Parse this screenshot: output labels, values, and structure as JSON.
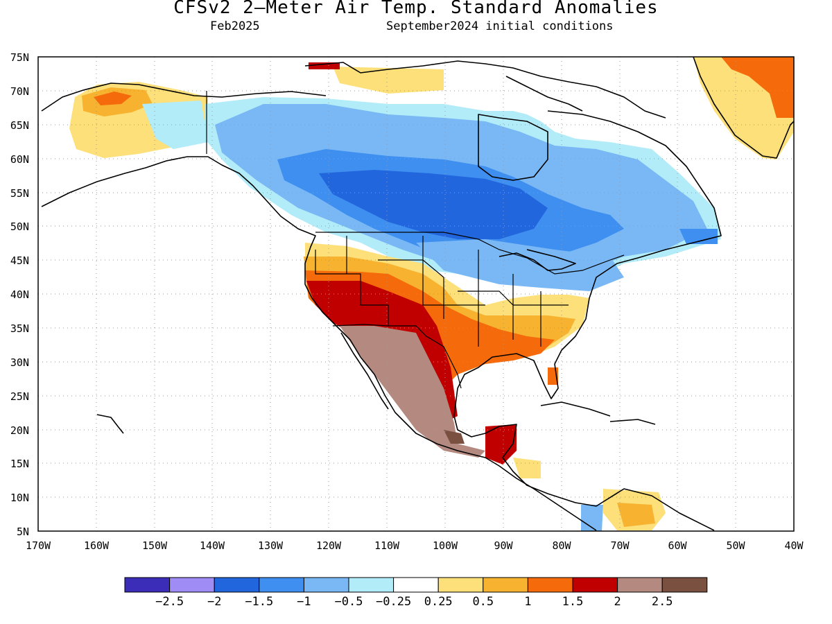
{
  "header": {
    "title": "CFSv2 2–Meter Air Temp. Standard Anomalies",
    "valid_month": "Feb2025",
    "init_conditions": "September2024 initial conditions"
  },
  "axes": {
    "lat_labels": [
      "75N",
      "70N",
      "65N",
      "60N",
      "55N",
      "50N",
      "45N",
      "40N",
      "35N",
      "30N",
      "25N",
      "20N",
      "15N",
      "10N",
      "5N"
    ],
    "lon_labels": [
      "170W",
      "160W",
      "150W",
      "140W",
      "130W",
      "120W",
      "110W",
      "100W",
      "90W",
      "80W",
      "70W",
      "60W",
      "50W",
      "40W"
    ]
  },
  "colorbar": {
    "colors": [
      "#3b2db8",
      "#a08cf5",
      "#2266dd",
      "#3f8ff0",
      "#79b8f5",
      "#b2ecf8",
      "#ffffff",
      "#fde07a",
      "#f7b330",
      "#f56a0a",
      "#c00000",
      "#b48a80",
      "#7a5040"
    ],
    "labels": [
      "−2.5",
      "−2",
      "−1.5",
      "−1",
      "−0.5",
      "−0.25",
      "0.25",
      "0.5",
      "1",
      "1.5",
      "2",
      "2.5"
    ]
  },
  "map": {
    "land_color": "#ffffff",
    "outline_color": "#000000",
    "grid": "dotted"
  }
}
